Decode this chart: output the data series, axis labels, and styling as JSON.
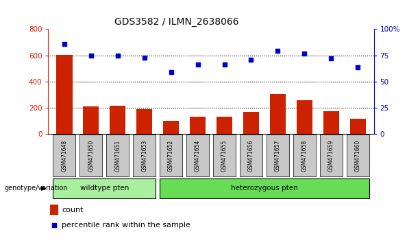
{
  "title": "GDS3582 / ILMN_2638066",
  "categories": [
    "GSM471648",
    "GSM471650",
    "GSM471651",
    "GSM471653",
    "GSM471652",
    "GSM471654",
    "GSM471655",
    "GSM471656",
    "GSM471657",
    "GSM471658",
    "GSM471659",
    "GSM471660"
  ],
  "bar_values": [
    605,
    210,
    215,
    185,
    100,
    130,
    128,
    165,
    305,
    255,
    170,
    115
  ],
  "scatter_values": [
    685,
    595,
    595,
    580,
    470,
    530,
    530,
    565,
    635,
    615,
    575,
    510
  ],
  "bar_color": "#cc2200",
  "scatter_color": "#0000cc",
  "ylim_left": [
    0,
    800
  ],
  "ylim_right": [
    0,
    100
  ],
  "yticks_left": [
    0,
    200,
    400,
    600,
    800
  ],
  "yticks_right": [
    0,
    25,
    50,
    75,
    100
  ],
  "ytick_right_labels": [
    "0",
    "25",
    "50",
    "75",
    "100%"
  ],
  "grid_values": [
    200,
    400,
    600
  ],
  "n_wildtype": 4,
  "n_heterozygous": 8,
  "wildtype_label": "wildtype pten",
  "heterozygous_label": "heterozygous pten",
  "genotype_label": "genotype/variation",
  "legend_count": "count",
  "legend_percentile": "percentile rank within the sample",
  "wildtype_color": "#aaeea0",
  "heterozygous_color": "#66dd55",
  "sample_box_color": "#c8c8c8",
  "bg_color": "#ffffff"
}
